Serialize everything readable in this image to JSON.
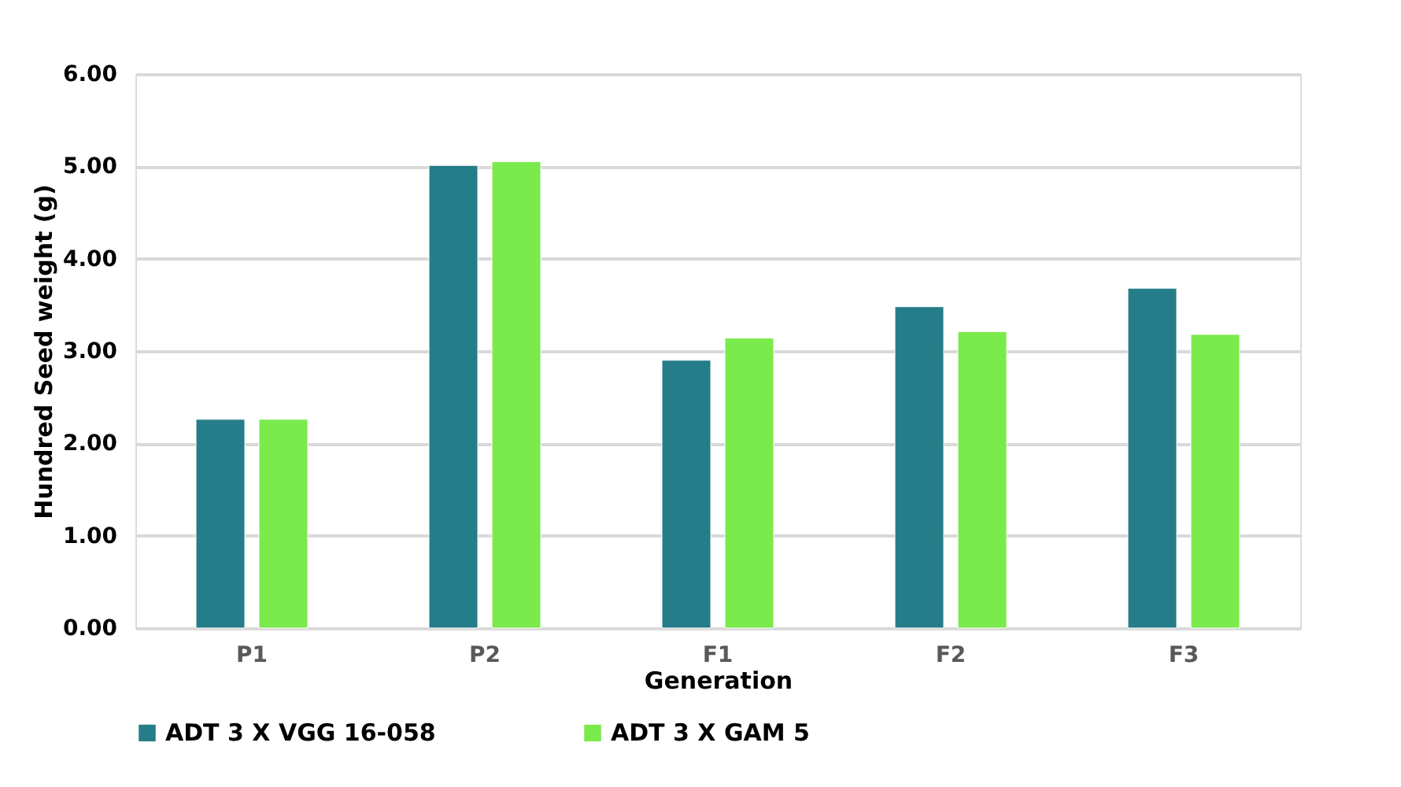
{
  "chart_data": {
    "type": "bar",
    "xlabel": "Generation",
    "ylabel": "Hundred Seed weight (g)",
    "categories": [
      "P1",
      "P2",
      "F1",
      "F2",
      "F3"
    ],
    "series": [
      {
        "name": "ADT 3 X VGG 16-058",
        "color": "#257d89",
        "values": [
          2.26,
          5.01,
          2.9,
          3.48,
          3.68
        ]
      },
      {
        "name": "ADT 3 X GAM 5",
        "color": "#7aea4c",
        "values": [
          2.26,
          5.05,
          3.14,
          3.21,
          3.18
        ]
      }
    ],
    "ylim": [
      0,
      6
    ],
    "yticks": [
      {
        "value": 0,
        "label": "0.00"
      },
      {
        "value": 1,
        "label": "1.00"
      },
      {
        "value": 2,
        "label": "2.00"
      },
      {
        "value": 3,
        "label": "3.00"
      },
      {
        "value": 4,
        "label": "4.00"
      },
      {
        "value": 5,
        "label": "5.00"
      },
      {
        "value": 6,
        "label": "6.00"
      }
    ],
    "grid": "y",
    "legend": "bottom"
  }
}
